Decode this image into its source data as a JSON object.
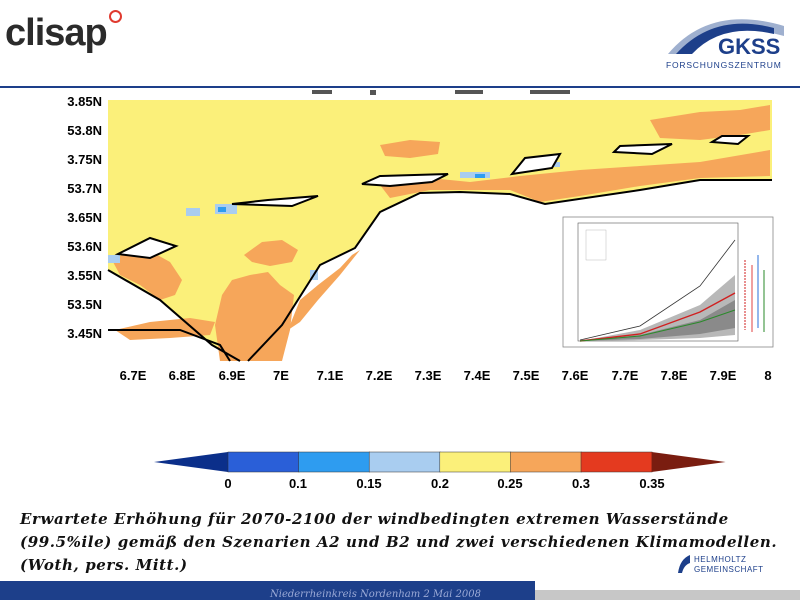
{
  "header": {
    "logo_left": "clisap",
    "logo_right_main": "GKSS",
    "logo_right_sub": "FORSCHUNGSZENTRUM"
  },
  "map": {
    "y_labels": [
      "3.85N",
      "53.8N",
      "3.75N",
      "53.7N",
      "3.65N",
      "53.6N",
      "3.55N",
      "53.5N",
      "3.45N"
    ],
    "x_labels": [
      "6.7E",
      "6.8E",
      "6.9E",
      "7E",
      "7.1E",
      "7.2E",
      "7.3E",
      "7.4E",
      "7.5E",
      "7.6E",
      "7.7E",
      "7.8E",
      "7.9E",
      "8"
    ]
  },
  "colorbar": {
    "colors": [
      "#0b2f8a",
      "#2a5fd8",
      "#2e9cf0",
      "#a9cdf0",
      "#fbf07a",
      "#f6a65a",
      "#e43a1f",
      "#7a1d10"
    ],
    "ticks": [
      "0",
      "0.1",
      "0.15",
      "0.2",
      "0.25",
      "0.3",
      "0.35"
    ]
  },
  "caption": {
    "line1": "Erwartete Erhöhung für 2070-2100 der windbedingten extremen Wasserstände",
    "line2": "(99.5%ile) gemäß den Szenarien A2 und B2 und zwei verschiedenen Klimamodellen.",
    "line3": "(Woth, pers. Mitt.)"
  },
  "footer": {
    "text": "Niederrheinkreis Nordenham 2 Mai 2008",
    "helmholtz_line1": "HELMHOLTZ",
    "helmholtz_line2": "GEMEINSCHAFT"
  }
}
